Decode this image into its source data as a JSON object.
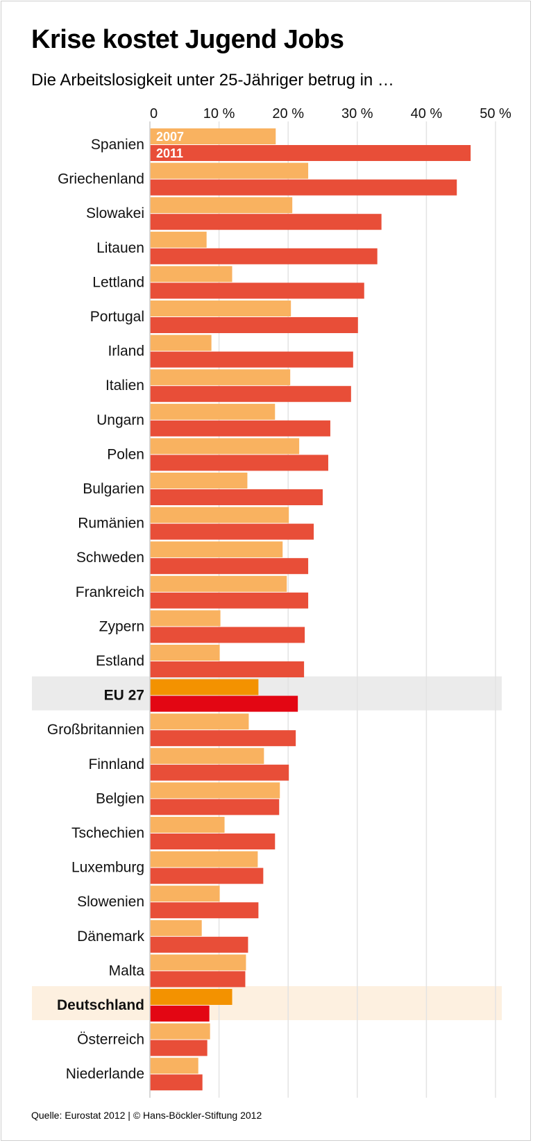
{
  "title": "Krise kostet Jugend Jobs",
  "subtitle": "Die Arbeitslosigkeit unter 25-Jähriger betrug in …",
  "source": "Quelle: Eurostat 2012 | © Hans-Böckler-Stiftung 2012",
  "colors": {
    "bar_2007": "#f9b260",
    "bar_2011": "#e84e38",
    "highlight_2007": "#f39200",
    "highlight_2011": "#e30613",
    "eu_band": "#ebebeb",
    "de_band": "#fdf0e0",
    "gridline": "#e3e3e3"
  },
  "chart_data": {
    "type": "bar",
    "orientation": "horizontal",
    "title": "Krise kostet Jugend Jobs",
    "subtitle": "Die Arbeitslosigkeit unter 25-Jähriger betrug in …",
    "xlim": [
      0,
      50
    ],
    "xticks": [
      0,
      10,
      20,
      30,
      40,
      50
    ],
    "xtick_labels": [
      "0",
      "10 %",
      "20 %",
      "30 %",
      "40 %",
      "50 %"
    ],
    "grid": true,
    "categories": [
      "Spanien",
      "Griechenland",
      "Slowakei",
      "Litauen",
      "Lettland",
      "Portugal",
      "Irland",
      "Italien",
      "Ungarn",
      "Polen",
      "Bulgarien",
      "Rumänien",
      "Schweden",
      "Frankreich",
      "Zypern",
      "Estland",
      "EU 27",
      "Großbritannien",
      "Finnland",
      "Belgien",
      "Tschechien",
      "Luxemburg",
      "Slowenien",
      "Dänemark",
      "Malta",
      "Deutschland",
      "Österreich",
      "Niederlande"
    ],
    "highlighted": [
      "EU 27",
      "Deutschland"
    ],
    "series": [
      {
        "name": "2007",
        "values": [
          18.2,
          22.9,
          20.6,
          8.2,
          11.9,
          20.4,
          8.9,
          20.3,
          18.1,
          21.6,
          14.1,
          20.1,
          19.2,
          19.8,
          10.2,
          10.1,
          15.7,
          14.3,
          16.5,
          18.8,
          10.8,
          15.6,
          10.1,
          7.5,
          13.9,
          11.9,
          8.7,
          7.0
        ]
      },
      {
        "name": "2011",
        "values": [
          46.4,
          44.4,
          33.5,
          32.9,
          31.0,
          30.1,
          29.4,
          29.1,
          26.1,
          25.8,
          25.0,
          23.7,
          22.9,
          22.9,
          22.4,
          22.3,
          21.4,
          21.1,
          20.1,
          18.7,
          18.1,
          16.4,
          15.7,
          14.2,
          13.8,
          8.6,
          8.3,
          7.6
        ]
      }
    ]
  }
}
